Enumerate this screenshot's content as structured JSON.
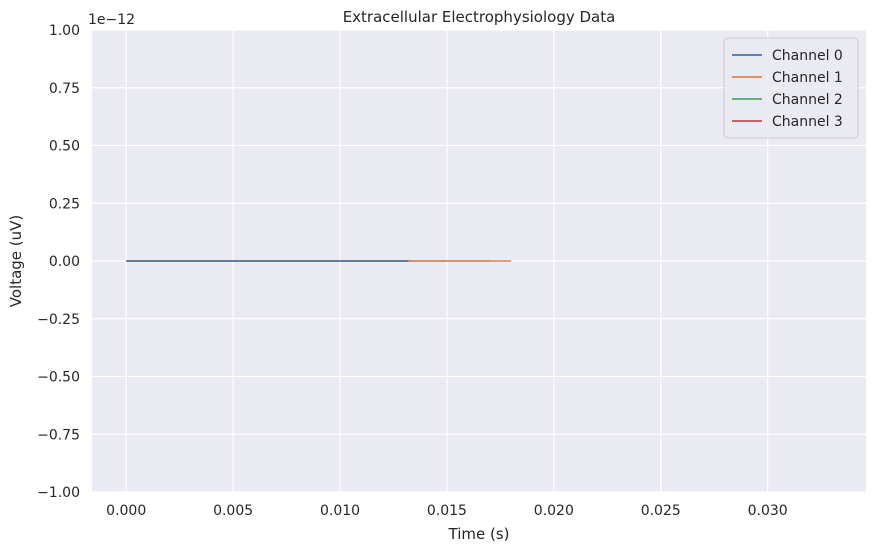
{
  "chart_data": {
    "type": "line",
    "title": "Extracellular Electrophysiology Data",
    "xlabel": "Time (s)",
    "ylabel": "Voltage (uV)",
    "y_offset_label": "1e−12",
    "xlim": [
      -0.0016,
      0.0346
    ],
    "ylim": [
      -1.0,
      1.0
    ],
    "x_ticks": [
      0.0,
      0.005,
      0.01,
      0.015,
      0.02,
      0.025,
      0.03
    ],
    "x_tick_labels": [
      "0.000",
      "0.005",
      "0.010",
      "0.015",
      "0.020",
      "0.025",
      "0.030"
    ],
    "y_ticks": [
      1.0,
      0.75,
      0.5,
      0.25,
      0.0,
      -0.25,
      -0.5,
      -0.75,
      -1.0
    ],
    "y_tick_labels": [
      "1.00",
      "0.75",
      "0.50",
      "0.25",
      "0.00",
      "−0.25",
      "−0.50",
      "−0.75",
      "−1.00"
    ],
    "grid": true,
    "legend_position": "top-right",
    "colors": {
      "plot_bg": "#eaeaf2",
      "grid": "#ffffff",
      "text": "#262626"
    },
    "series": [
      {
        "name": "Channel 0",
        "color": "#4c72b0",
        "x": [
          0.0,
          0.0132
        ],
        "y": [
          0.0,
          0.0
        ]
      },
      {
        "name": "Channel 1",
        "color": "#dd8452",
        "x": [
          0.0,
          0.018
        ],
        "y": [
          0.0,
          0.0
        ]
      },
      {
        "name": "Channel 2",
        "color": "#55a868",
        "x": [
          0.0,
          0.017
        ],
        "y": [
          0.0,
          0.0
        ]
      },
      {
        "name": "Channel 3",
        "color": "#c44e52",
        "x": [
          0.0,
          0.0132
        ],
        "y": [
          0.0,
          0.0
        ]
      }
    ]
  }
}
